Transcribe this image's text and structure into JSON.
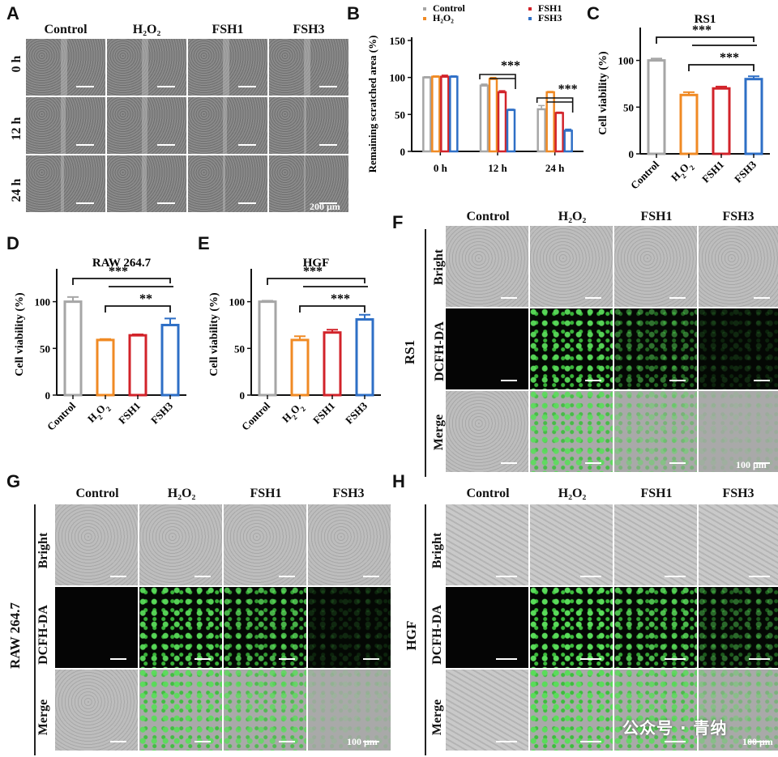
{
  "panels": {
    "A": "A",
    "B": "B",
    "C": "C",
    "D": "D",
    "E": "E",
    "F": "F",
    "G": "G",
    "H": "H"
  },
  "groups": [
    "Control",
    "H₂O₂",
    "FSH1",
    "FSH3"
  ],
  "panelA": {
    "rows": [
      "0 h",
      "12 h",
      "24 h"
    ],
    "scale": "200 μm"
  },
  "micro_rows": [
    "Bright",
    "DCFH-DA",
    "Merge"
  ],
  "panelF": {
    "cell": "RS1",
    "scale": "100 μm"
  },
  "panelG": {
    "cell": "RAW 264.7",
    "scale": "100 μm"
  },
  "panelH": {
    "cell": "HGF",
    "scale": "100 μm"
  },
  "watermark": "公众号 · 青纳",
  "colors": {
    "Control": "#a6a6a6",
    "H2O2": "#f08a24",
    "FSH1": "#d2232a",
    "FSH3": "#2e6fc6"
  },
  "chart_data": [
    {
      "id": "B",
      "type": "bar",
      "ylabel": "Remaining scratched area (%)",
      "categories": [
        "0 h",
        "12 h",
        "24 h"
      ],
      "ylim": [
        0,
        150
      ],
      "yticks": [
        0,
        50,
        100,
        150
      ],
      "legend": [
        "Control",
        "H₂O₂",
        "FSH1",
        "FSH3"
      ],
      "series": [
        {
          "name": "Control",
          "values": [
            100,
            89,
            57
          ],
          "err": [
            1,
            2,
            5
          ]
        },
        {
          "name": "H₂O₂",
          "values": [
            101,
            98,
            80
          ],
          "err": [
            1,
            2,
            1
          ]
        },
        {
          "name": "FSH1",
          "values": [
            101,
            80,
            52
          ],
          "err": [
            2,
            2,
            1
          ]
        },
        {
          "name": "FSH3",
          "values": [
            101,
            56,
            28
          ],
          "err": [
            1,
            1,
            2
          ]
        }
      ],
      "annotations": [
        "***",
        "***"
      ]
    },
    {
      "id": "C",
      "type": "bar",
      "title": "RS1",
      "ylabel": "Cell viability (%)",
      "categories": [
        "Control",
        "H2O2",
        "FSH1",
        "FSH3"
      ],
      "values": [
        100,
        63,
        70,
        80
      ],
      "err": [
        2,
        3,
        2,
        3
      ],
      "ylim": [
        0,
        130
      ],
      "yticks": [
        0,
        50,
        100
      ],
      "annotations": [
        "***",
        "***"
      ]
    },
    {
      "id": "D",
      "type": "bar",
      "title": "RAW 264.7",
      "ylabel": "Cell viability (%)",
      "categories": [
        "Control",
        "H2O2",
        "FSH1",
        "FSH3"
      ],
      "values": [
        100,
        59,
        64,
        75
      ],
      "err": [
        5,
        1,
        1,
        7
      ],
      "ylim": [
        0,
        130
      ],
      "yticks": [
        0,
        50,
        100
      ],
      "annotations": [
        "***",
        "**"
      ]
    },
    {
      "id": "E",
      "type": "bar",
      "title": "HGF",
      "ylabel": "Cell viability (%)",
      "categories": [
        "Control",
        "H2O2",
        "FSH1",
        "FSH3"
      ],
      "values": [
        100,
        59,
        67,
        81
      ],
      "err": [
        1,
        4,
        3,
        5
      ],
      "ylim": [
        0,
        130
      ],
      "yticks": [
        0,
        50,
        100
      ],
      "annotations": [
        "***",
        "***"
      ]
    }
  ]
}
